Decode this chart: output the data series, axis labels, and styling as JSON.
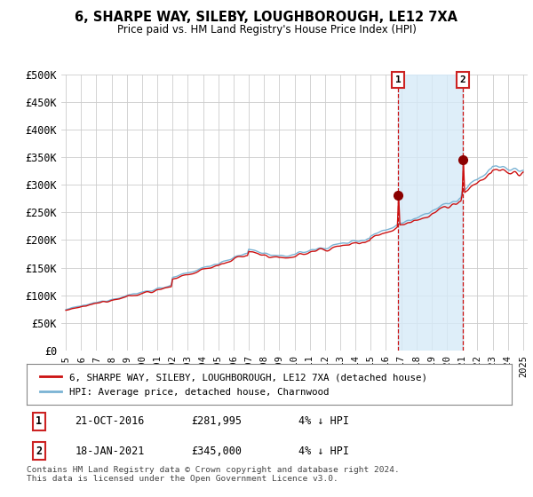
{
  "title": "6, SHARPE WAY, SILEBY, LOUGHBOROUGH, LE12 7XA",
  "subtitle": "Price paid vs. HM Land Registry's House Price Index (HPI)",
  "ylabel_ticks": [
    "£0",
    "£50K",
    "£100K",
    "£150K",
    "£200K",
    "£250K",
    "£300K",
    "£350K",
    "£400K",
    "£450K",
    "£500K"
  ],
  "ytick_values": [
    0,
    50000,
    100000,
    150000,
    200000,
    250000,
    300000,
    350000,
    400000,
    450000,
    500000
  ],
  "ylim": [
    0,
    500000
  ],
  "xtick_years": [
    1995,
    1996,
    1997,
    1998,
    1999,
    2000,
    2001,
    2002,
    2003,
    2004,
    2005,
    2006,
    2007,
    2008,
    2009,
    2010,
    2011,
    2012,
    2013,
    2014,
    2015,
    2016,
    2017,
    2018,
    2019,
    2020,
    2021,
    2022,
    2023,
    2024,
    2025
  ],
  "hpi_color": "#7ab3d4",
  "hpi_fill_color": "#d6eaf8",
  "price_color": "#cc1111",
  "marker1_x": 2016.8,
  "marker1_y": 281995,
  "marker2_x": 2021.05,
  "marker2_y": 345000,
  "annotation1": [
    "1",
    "21-OCT-2016",
    "£281,995",
    "4% ↓ HPI"
  ],
  "annotation2": [
    "2",
    "18-JAN-2021",
    "£345,000",
    "4% ↓ HPI"
  ],
  "legend_line1": "6, SHARPE WAY, SILEBY, LOUGHBOROUGH, LE12 7XA (detached house)",
  "legend_line2": "HPI: Average price, detached house, Charnwood",
  "footer": "Contains HM Land Registry data © Crown copyright and database right 2024.\nThis data is licensed under the Open Government Licence v3.0.",
  "background_color": "#ffffff",
  "grid_color": "#cccccc"
}
